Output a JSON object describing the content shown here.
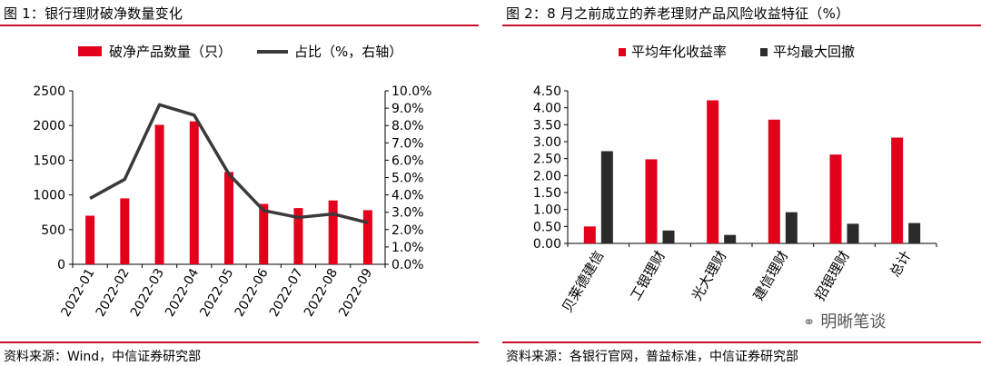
{
  "figures": [
    {
      "title": "图 1：银行理财破净数量变化",
      "source": "资料来源：Wind，中信证券研究部"
    },
    {
      "title": "图 2：8 月之前成立的养老理财产品风险收益特征（%）",
      "source": "资料来源：各银行官网，普益标准，中信证券研究部"
    }
  ],
  "watermark": {
    "text": "明晰笔谈",
    "icon": "wechat-icon"
  },
  "colors": {
    "accent": "#c8102e",
    "bar_red": "#e3001b",
    "bar_dark": "#2b2b2b",
    "line": "#3a3a3a"
  },
  "chart_data": [
    {
      "type": "bar",
      "categories": [
        "2022-01",
        "2022-02",
        "2022-03",
        "2022-04",
        "2022-05",
        "2022-06",
        "2022-07",
        "2022-08",
        "2022-09"
      ],
      "series": [
        {
          "name": "破净产品数量（只）",
          "type": "bar",
          "axis": "left",
          "values": [
            700,
            950,
            2010,
            2060,
            1330,
            870,
            810,
            920,
            780
          ]
        },
        {
          "name": "占比（%，右轴）",
          "type": "line",
          "axis": "right",
          "values": [
            3.8,
            4.9,
            9.2,
            8.6,
            5.2,
            3.1,
            2.7,
            2.9,
            2.4
          ]
        }
      ],
      "ylim_left": [
        0,
        2500
      ],
      "yticks_left": [
        "0",
        "500",
        "1000",
        "1500",
        "2000",
        "2500"
      ],
      "ylim_right": [
        0,
        10
      ],
      "yticks_right": [
        "0.0%",
        "1.0%",
        "2.0%",
        "3.0%",
        "4.0%",
        "5.0%",
        "6.0%",
        "7.0%",
        "8.0%",
        "9.0%",
        "10.0%"
      ],
      "legend_position": "top",
      "grid": false
    },
    {
      "type": "bar",
      "categories": [
        "贝莱德建信",
        "工银理财",
        "光大理财",
        "建信理财",
        "招银理财",
        "总计"
      ],
      "series": [
        {
          "name": "平均年化收益率",
          "values": [
            0.5,
            2.48,
            4.22,
            3.65,
            2.62,
            3.12
          ]
        },
        {
          "name": "平均最大回撤",
          "values": [
            2.72,
            0.38,
            0.25,
            0.92,
            0.58,
            0.6
          ]
        }
      ],
      "ylim": [
        0,
        4.5
      ],
      "yticks": [
        "0.00",
        "0.50",
        "1.00",
        "1.50",
        "2.00",
        "2.50",
        "3.00",
        "3.50",
        "4.00",
        "4.50"
      ],
      "legend_position": "top",
      "grid": false
    }
  ]
}
